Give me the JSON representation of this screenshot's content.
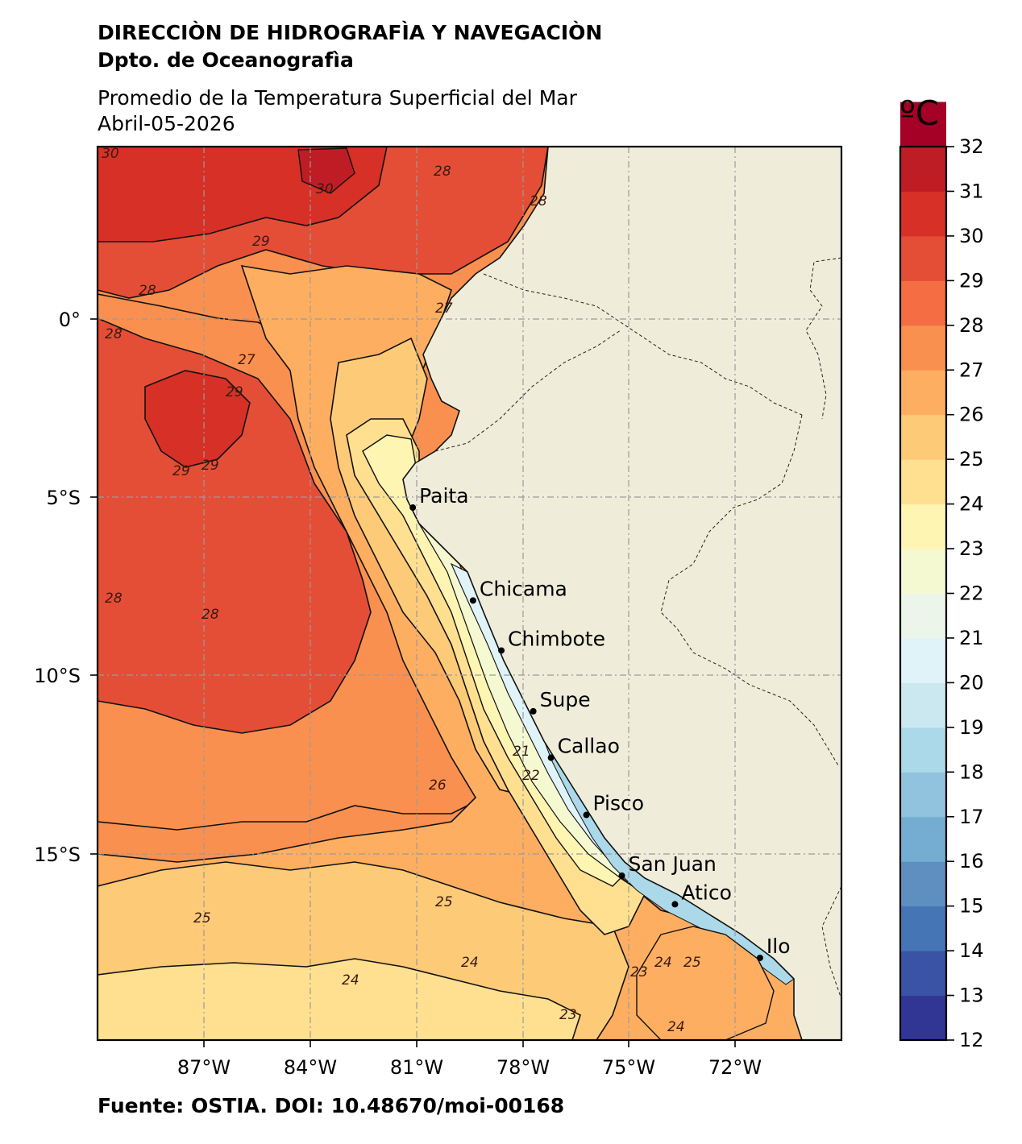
{
  "header": {
    "org": "DIRECCIÒN DE HIDROGRAFÌA Y NAVEGACIÒN",
    "dept": "Dpto. de Oceanografìa",
    "title": "Promedio de la Temperatura Superficial del Mar",
    "date": "Abril-05-2026"
  },
  "source": "Fuente: OSTIA. DOI: 10.48670/moi-00168",
  "map": {
    "lon_range": [
      -90,
      -69
    ],
    "lat_range": [
      -20,
      5
    ],
    "lon_ticks": [
      "87°W",
      "84°W",
      "81°W",
      "78°W",
      "75°W",
      "72°W"
    ],
    "lat_ticks": [
      "0°",
      "5°S",
      "10°S",
      "15°S"
    ],
    "grid": true,
    "land_color": "#efedda",
    "cities": [
      {
        "name": "Paita",
        "lon": -81.1,
        "lat": -5.1
      },
      {
        "name": "Chicama",
        "lon": -79.4,
        "lat": -7.7
      },
      {
        "name": "Chimbote",
        "lon": -78.6,
        "lat": -9.1
      },
      {
        "name": "Supe",
        "lon": -77.7,
        "lat": -10.8
      },
      {
        "name": "Callao",
        "lon": -77.2,
        "lat": -12.1
      },
      {
        "name": "Pisco",
        "lon": -76.2,
        "lat": -13.7
      },
      {
        "name": "San Juan",
        "lon": -75.2,
        "lat": -15.4
      },
      {
        "name": "Atico",
        "lon": -73.7,
        "lat": -16.2
      },
      {
        "name": "Ilo",
        "lon": -71.3,
        "lat": -17.7
      }
    ],
    "contour_labels": [
      "30",
      "30",
      "28",
      "28",
      "29",
      "28",
      "28",
      "27",
      "27",
      "29",
      "29",
      "29",
      "28",
      "28",
      "26",
      "25",
      "25",
      "24",
      "24",
      "23",
      "24",
      "25",
      "24",
      "23",
      "22",
      "21"
    ]
  },
  "colorbar": {
    "unit": "ºC",
    "min": 12,
    "max": 32,
    "ticks": [
      "12",
      "13",
      "14",
      "15",
      "16",
      "17",
      "18",
      "19",
      "20",
      "21",
      "22",
      "23",
      "24",
      "25",
      "26",
      "27",
      "28",
      "29",
      "30",
      "31",
      "32"
    ],
    "colors": [
      "#313695",
      "#3a53a4",
      "#4575b4",
      "#5f8fc0",
      "#74add1",
      "#91c3de",
      "#abd9e9",
      "#cbe8f0",
      "#e0f3f8",
      "#ebf5ea",
      "#f5f9d2",
      "#fff5b3",
      "#fee090",
      "#fdca78",
      "#fdae61",
      "#f9904f",
      "#f46d43",
      "#e44e36",
      "#d73027",
      "#bf1d26",
      "#a50026"
    ]
  }
}
